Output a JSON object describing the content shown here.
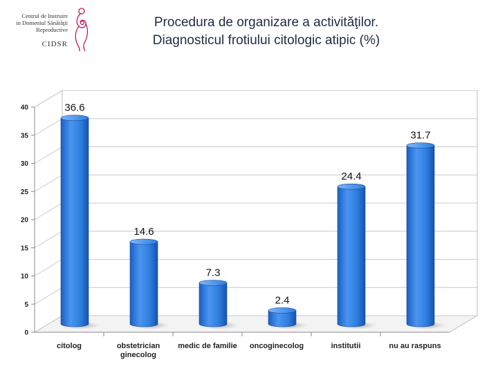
{
  "logo": {
    "org_lines": [
      "Centrul de Instruire",
      "in Domeniul Sănătăţii",
      "Reproductive"
    ],
    "acronym": "CIDSR",
    "icon": "mother-child-logo-icon",
    "color": "#c2185b"
  },
  "title": {
    "line1": "Procedura de organizare a activităţilor.",
    "line2": "Diagnosticul frotiului citologic atipic (%)"
  },
  "chart_data": {
    "type": "bar",
    "title": "",
    "xlabel": "",
    "ylabel": "",
    "categories": [
      [
        "citolog"
      ],
      [
        "obstetrician",
        "ginecolog"
      ],
      [
        "medic de familie"
      ],
      [
        "oncoginecolog"
      ],
      [
        "institutii"
      ],
      [
        "nu au raspuns"
      ]
    ],
    "values": [
      36.6,
      14.6,
      7.3,
      2.4,
      24.4,
      31.7
    ],
    "value_labels": [
      "36.6",
      "14.6",
      "7.3",
      "2.4",
      "24.4",
      "31.7"
    ],
    "ylim": [
      0,
      40
    ],
    "yticks": [
      0,
      5,
      10,
      15,
      20,
      25,
      30,
      35,
      40
    ],
    "grid": true,
    "legend": "none",
    "bar_color": "#2f7fe0"
  }
}
